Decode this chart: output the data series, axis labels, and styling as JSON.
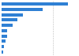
{
  "values": [
    35.1,
    21.6,
    11.1,
    8.3,
    6.0,
    3.1,
    2.9,
    2.2,
    1.2,
    0.9
  ],
  "bar_color": "#2f80d4",
  "background_color": "#ffffff",
  "xlim": [
    0,
    40
  ],
  "bar_height": 0.6,
  "figsize": [
    1.0,
    0.71
  ],
  "dpi": 100
}
